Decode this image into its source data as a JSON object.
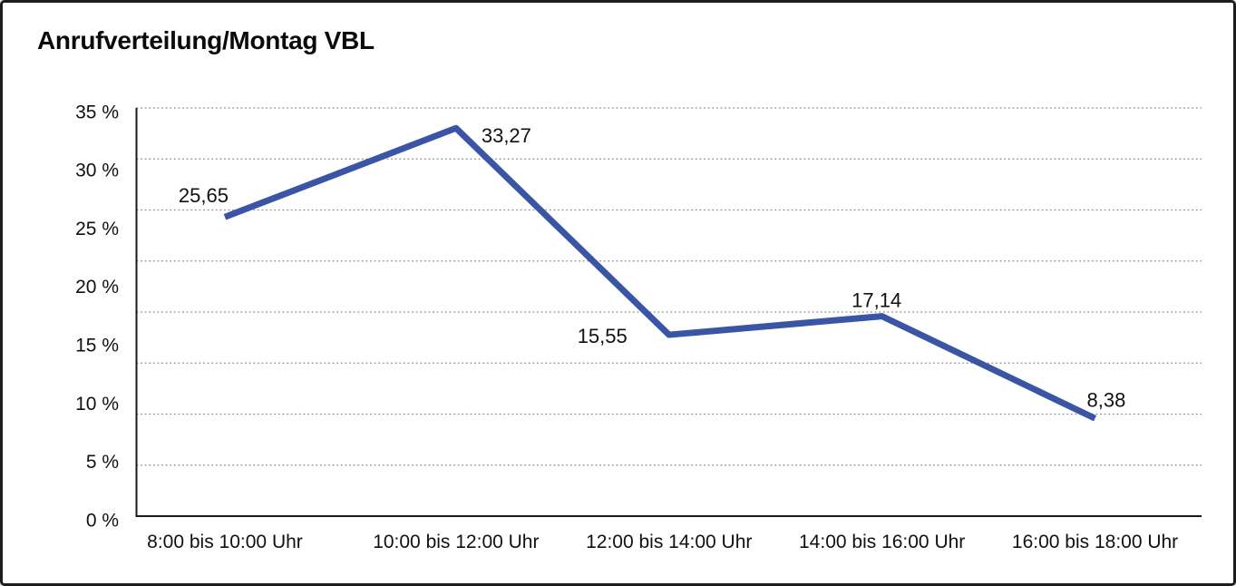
{
  "title": "Anrufverteilung/Montag VBL",
  "colors": {
    "line": "#3A55A5",
    "text": "#111111",
    "grid": "#8a8a8a",
    "axis": "#1a1a1a",
    "background": "#ffffff",
    "border": "#1c1c1c"
  },
  "chart_data": {
    "type": "line",
    "title": "Anrufverteilung/Montag VBL",
    "categories": [
      "8:00 bis 10:00 Uhr",
      "10:00 bis 12:00 Uhr",
      "12:00 bis 14:00 Uhr",
      "14:00 bis 16:00 Uhr",
      "16:00 bis 18:00 Uhr"
    ],
    "values": [
      25.65,
      33.27,
      15.55,
      17.14,
      8.38
    ],
    "data_labels": [
      "25,65",
      "33,27",
      "15,55",
      "17,14",
      "8,38"
    ],
    "y_tick_labels": [
      "35 %",
      "30 %",
      "25 %",
      "20 %",
      "15 %",
      "10 %",
      "5 %",
      "0 %"
    ],
    "ylim": [
      0,
      35
    ],
    "xlabel": "",
    "ylabel": "",
    "grid": "horizontal-dotted",
    "legend": "none"
  }
}
